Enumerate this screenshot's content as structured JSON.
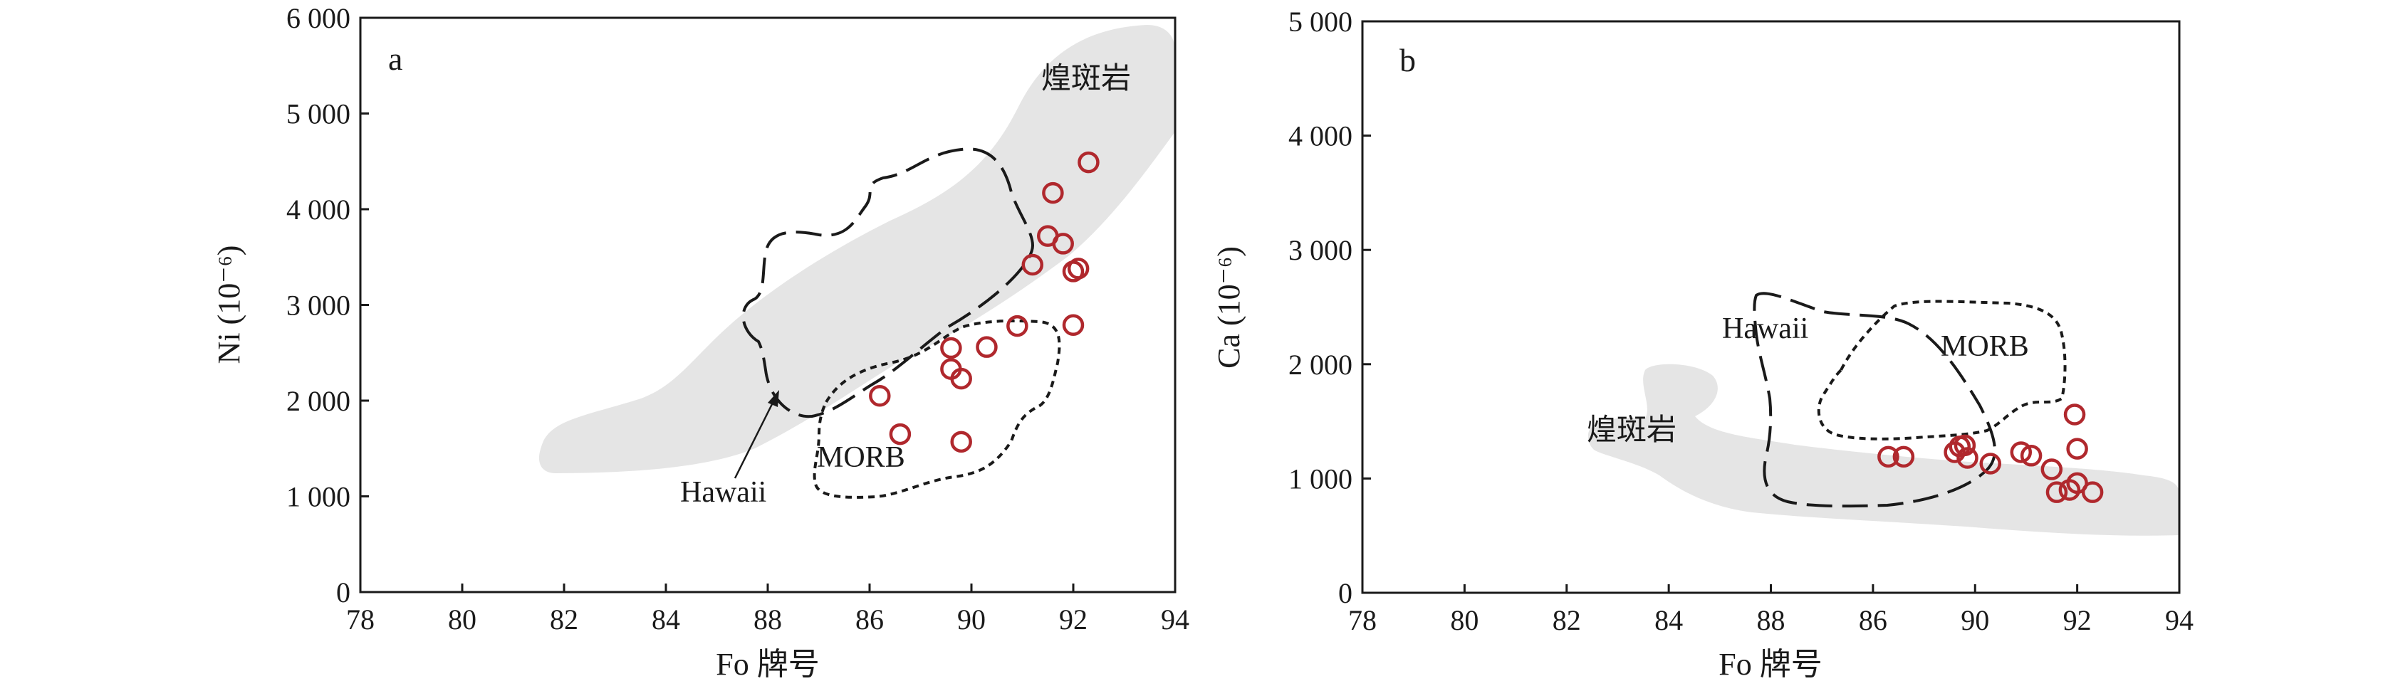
{
  "chart_data": [
    {
      "type": "scatter",
      "panel": "a",
      "xlabel": "Fo 牌号",
      "ylabel": "Ni (10⁻⁶)",
      "xticks": [
        "78",
        "80",
        "82",
        "84",
        "88",
        "86",
        "90",
        "92",
        "94"
      ],
      "ytick_values": [
        0,
        1000,
        2000,
        3000,
        4000,
        5000,
        6000
      ],
      "ytick_labels": [
        "0",
        "1 000",
        "2 000",
        "3 000",
        "4 000",
        "5 000",
        "6 000"
      ],
      "xlim": [
        78,
        94
      ],
      "ylim": [
        0,
        6000
      ],
      "regions": [
        {
          "label": "煌斑岩",
          "style": "gray fill"
        },
        {
          "label": "Hawaii",
          "style": "long-dashed outline"
        },
        {
          "label": "MORB",
          "style": "short-dashed outline"
        }
      ],
      "points": [
        {
          "x": 88.6,
          "y": 1650
        },
        {
          "x": 88.2,
          "y": 2050
        },
        {
          "x": 89.6,
          "y": 2550
        },
        {
          "x": 89.6,
          "y": 2330
        },
        {
          "x": 89.8,
          "y": 2230
        },
        {
          "x": 89.8,
          "y": 1570
        },
        {
          "x": 90.3,
          "y": 2560
        },
        {
          "x": 90.9,
          "y": 2780
        },
        {
          "x": 91.2,
          "y": 3420
        },
        {
          "x": 91.5,
          "y": 3720
        },
        {
          "x": 91.6,
          "y": 4170
        },
        {
          "x": 91.8,
          "y": 3640
        },
        {
          "x": 92.0,
          "y": 3350
        },
        {
          "x": 92.1,
          "y": 3380
        },
        {
          "x": 92.0,
          "y": 2790
        },
        {
          "x": 92.3,
          "y": 4490
        }
      ],
      "colors": {
        "points": "#b0282d",
        "region_fill": "#e5e5e5"
      }
    },
    {
      "type": "scatter",
      "panel": "b",
      "xlabel": "Fo 牌号",
      "ylabel": "Ca (10⁻⁶)",
      "xticks": [
        "78",
        "80",
        "82",
        "84",
        "88",
        "86",
        "90",
        "92",
        "94"
      ],
      "ytick_values": [
        0,
        1000,
        2000,
        3000,
        4000,
        5000
      ],
      "ytick_labels": [
        "0",
        "1 000",
        "2 000",
        "3 000",
        "4 000",
        "5 000"
      ],
      "xlim": [
        78,
        94
      ],
      "ylim": [
        0,
        5000
      ],
      "regions": [
        {
          "label": "煌斑岩",
          "style": "gray fill"
        },
        {
          "label": "Hawaii",
          "style": "long-dashed outline"
        },
        {
          "label": "MORB",
          "style": "short-dashed outline"
        }
      ],
      "points": [
        {
          "x": 88.6,
          "y": 1190
        },
        {
          "x": 88.3,
          "y": 1190
        },
        {
          "x": 89.6,
          "y": 1230
        },
        {
          "x": 89.7,
          "y": 1280
        },
        {
          "x": 89.8,
          "y": 1290
        },
        {
          "x": 89.85,
          "y": 1180
        },
        {
          "x": 90.3,
          "y": 1130
        },
        {
          "x": 90.9,
          "y": 1230
        },
        {
          "x": 91.1,
          "y": 1200
        },
        {
          "x": 91.5,
          "y": 1080
        },
        {
          "x": 91.6,
          "y": 880
        },
        {
          "x": 91.85,
          "y": 900
        },
        {
          "x": 92.0,
          "y": 960
        },
        {
          "x": 92.3,
          "y": 880
        },
        {
          "x": 92.0,
          "y": 1260
        },
        {
          "x": 91.95,
          "y": 1560
        }
      ],
      "colors": {
        "points": "#b0282d",
        "region_fill": "#e5e5e5"
      }
    }
  ]
}
